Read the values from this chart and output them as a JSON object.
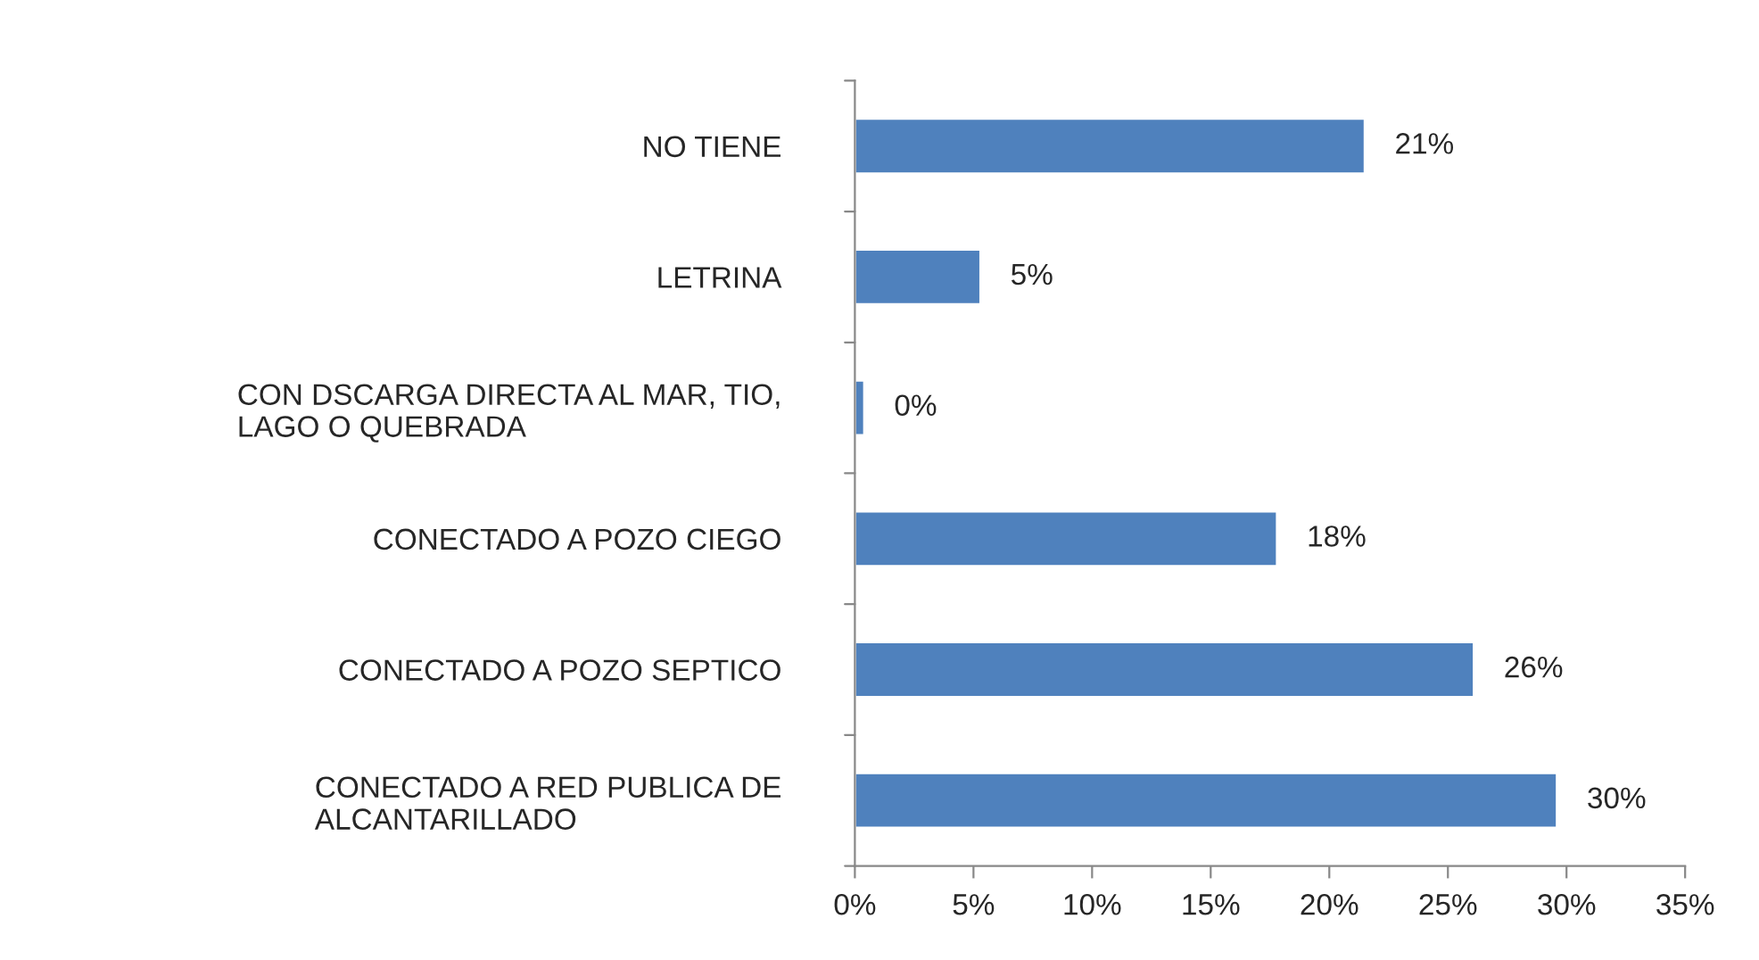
{
  "chart_data": {
    "type": "bar",
    "orientation": "horizontal",
    "categories": [
      "NO TIENE",
      "LETRINA",
      "CON DSCARGA DIRECTA AL MAR, TIO,\nLAGO O QUEBRADA",
      "CONECTADO A POZO CIEGO",
      "CONECTADO A POZO SEPTICO",
      "CONECTADO A RED PUBLICA DE\nALCANTARILLADO"
    ],
    "values": [
      21.5,
      5.3,
      0.4,
      17.8,
      26.1,
      29.6
    ],
    "value_labels": [
      "21%",
      "5%",
      "0%",
      "18%",
      "26%",
      "30%"
    ],
    "color": "#4f81bd",
    "xlim": [
      0,
      35
    ],
    "xticks": [
      {
        "value": 0,
        "label": "0%"
      },
      {
        "value": 5,
        "label": "5%"
      },
      {
        "value": 10,
        "label": "10%"
      },
      {
        "value": 15,
        "label": "15%"
      },
      {
        "value": 20,
        "label": "20%"
      },
      {
        "value": 25,
        "label": "25%"
      },
      {
        "value": 30,
        "label": "30%"
      },
      {
        "value": 35,
        "label": "35%"
      }
    ],
    "grid": false,
    "legend": false
  }
}
